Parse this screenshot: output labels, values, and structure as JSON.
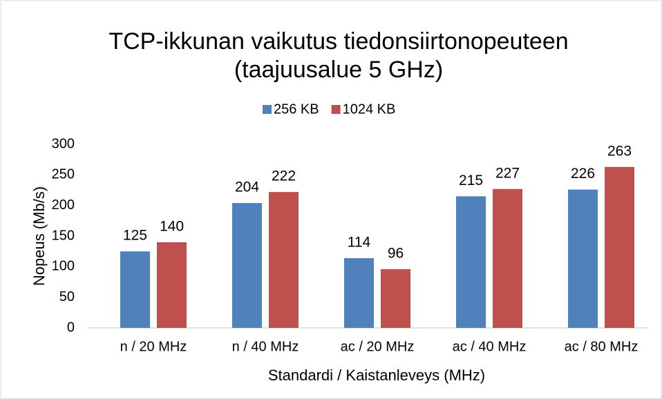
{
  "chart_data": {
    "type": "bar",
    "title": [
      "TCP-ikkunan vaikutus tiedonsiirtonopeuteen",
      "(taajuusalue 5 GHz)"
    ],
    "xlabel": "Standardi / Kaistanleveys (MHz)",
    "ylabel": "Nopeus (Mb/s)",
    "categories": [
      "n / 20 MHz",
      "n / 40 MHz",
      "ac / 20 MHz",
      "ac / 40 MHz",
      "ac / 80 MHz"
    ],
    "series": [
      {
        "name": "256 KB",
        "color": "#4f81bd",
        "values": [
          125,
          204,
          114,
          215,
          226
        ]
      },
      {
        "name": "1024 KB",
        "color": "#c0504d",
        "values": [
          140,
          222,
          96,
          227,
          263
        ]
      }
    ],
    "ylim": [
      0,
      300
    ],
    "yticks": [
      0,
      50,
      100,
      150,
      200,
      250,
      300
    ],
    "grid": false,
    "legend": "top"
  }
}
